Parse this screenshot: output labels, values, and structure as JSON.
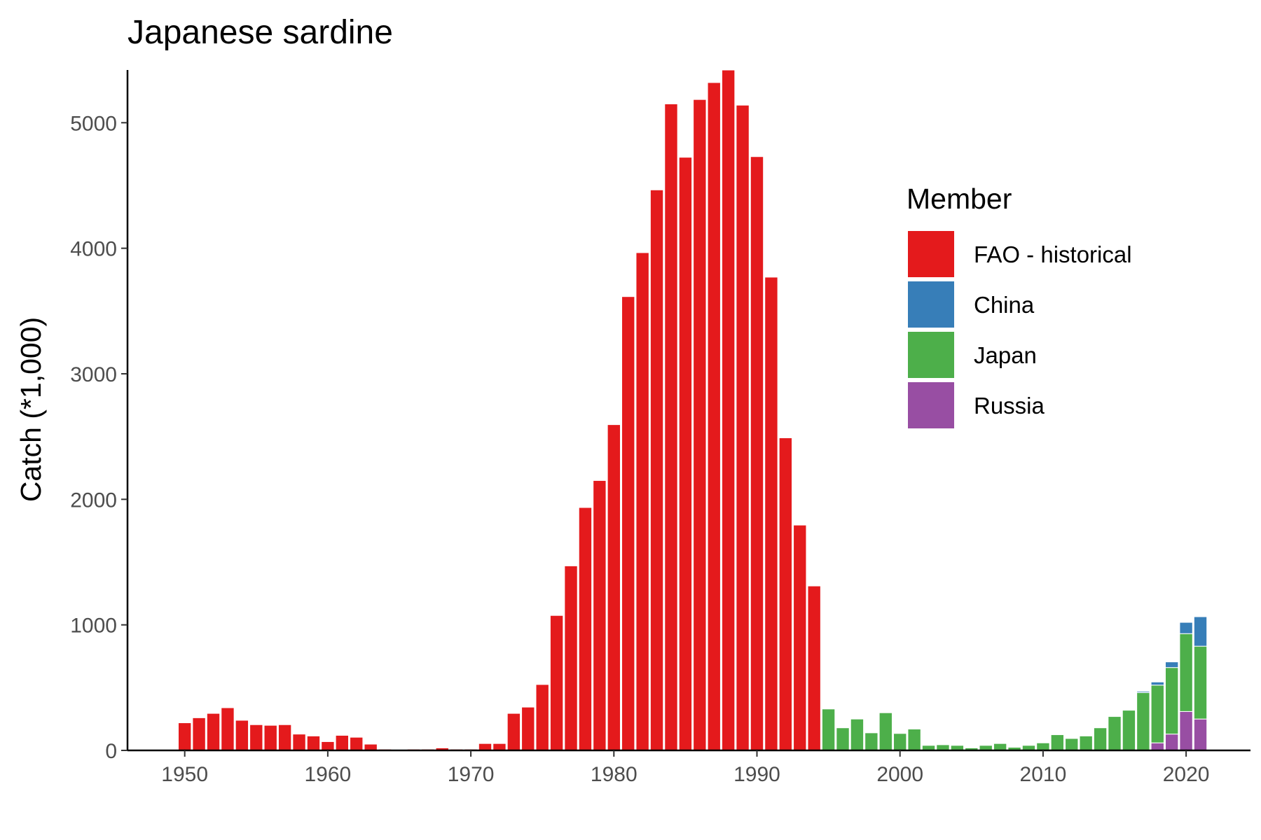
{
  "chart_data": {
    "type": "bar",
    "stacked": true,
    "title": "Japanese sardine",
    "xlabel": "",
    "ylabel": "Catch (*1,000)",
    "xlim": [
      1946,
      2024.5
    ],
    "ylim": [
      0,
      5420
    ],
    "x_ticks": [
      1950,
      1960,
      1970,
      1980,
      1990,
      2000,
      2010,
      2020
    ],
    "y_ticks": [
      0,
      1000,
      2000,
      3000,
      4000,
      5000
    ],
    "grid": false,
    "legend": {
      "title": "Member",
      "position": "right",
      "entries": [
        "FAO - historical",
        "China",
        "Japan",
        "Russia"
      ]
    },
    "x": [
      1950,
      1951,
      1952,
      1953,
      1954,
      1955,
      1956,
      1957,
      1958,
      1959,
      1960,
      1961,
      1962,
      1963,
      1964,
      1965,
      1966,
      1967,
      1968,
      1969,
      1970,
      1971,
      1972,
      1973,
      1974,
      1975,
      1976,
      1977,
      1978,
      1979,
      1980,
      1981,
      1982,
      1983,
      1984,
      1985,
      1986,
      1987,
      1988,
      1989,
      1990,
      1991,
      1992,
      1993,
      1994,
      1995,
      1996,
      1997,
      1998,
      1999,
      2000,
      2001,
      2002,
      2003,
      2004,
      2005,
      2006,
      2007,
      2008,
      2009,
      2010,
      2011,
      2012,
      2013,
      2014,
      2015,
      2016,
      2017,
      2018,
      2019,
      2020,
      2021
    ],
    "series": [
      {
        "name": "Russia",
        "color": "#984EA3",
        "values": [
          0,
          0,
          0,
          0,
          0,
          0,
          0,
          0,
          0,
          0,
          0,
          0,
          0,
          0,
          0,
          0,
          0,
          0,
          0,
          0,
          0,
          0,
          0,
          0,
          0,
          0,
          0,
          0,
          0,
          0,
          0,
          0,
          0,
          0,
          0,
          0,
          0,
          0,
          0,
          0,
          0,
          0,
          0,
          0,
          0,
          0,
          0,
          0,
          0,
          0,
          0,
          0,
          0,
          0,
          0,
          0,
          0,
          0,
          0,
          0,
          0,
          0,
          0,
          0,
          0,
          0,
          0,
          0,
          60,
          130,
          310,
          250
        ]
      },
      {
        "name": "Japan",
        "color": "#4DAF4A",
        "values": [
          0,
          0,
          0,
          0,
          0,
          0,
          0,
          0,
          0,
          0,
          0,
          0,
          0,
          0,
          0,
          0,
          0,
          0,
          0,
          0,
          0,
          0,
          0,
          0,
          0,
          0,
          0,
          0,
          0,
          0,
          0,
          0,
          0,
          0,
          0,
          0,
          0,
          0,
          0,
          0,
          0,
          0,
          0,
          0,
          0,
          330,
          180,
          250,
          140,
          300,
          135,
          170,
          40,
          45,
          40,
          20,
          40,
          55,
          25,
          40,
          60,
          125,
          95,
          115,
          180,
          270,
          320,
          460,
          460,
          530,
          620,
          580
        ]
      },
      {
        "name": "China",
        "color": "#377EB8",
        "values": [
          0,
          0,
          0,
          0,
          0,
          0,
          0,
          0,
          0,
          0,
          0,
          0,
          0,
          0,
          0,
          0,
          0,
          0,
          0,
          0,
          0,
          0,
          0,
          0,
          0,
          0,
          0,
          0,
          0,
          0,
          0,
          0,
          0,
          0,
          0,
          0,
          0,
          0,
          0,
          0,
          0,
          0,
          0,
          0,
          0,
          0,
          0,
          0,
          0,
          0,
          0,
          0,
          0,
          0,
          0,
          0,
          0,
          0,
          0,
          0,
          0,
          0,
          0,
          0,
          0,
          0,
          0,
          10,
          25,
          45,
          90,
          235
        ]
      },
      {
        "name": "FAO - historical",
        "color": "#E41A1C",
        "values": [
          220,
          260,
          295,
          340,
          240,
          205,
          200,
          205,
          130,
          115,
          70,
          120,
          105,
          50,
          10,
          5,
          10,
          10,
          20,
          10,
          10,
          55,
          55,
          295,
          345,
          525,
          1075,
          1470,
          1935,
          2150,
          2595,
          3615,
          3965,
          4465,
          5150,
          4725,
          5185,
          5320,
          5420,
          5140,
          4730,
          3770,
          2490,
          1795,
          1310,
          0,
          0,
          0,
          0,
          0,
          0,
          0,
          0,
          0,
          0,
          0,
          0,
          0,
          0,
          0,
          0,
          0,
          0,
          0,
          0,
          0,
          0,
          0,
          0,
          0,
          0,
          0
        ]
      }
    ]
  }
}
